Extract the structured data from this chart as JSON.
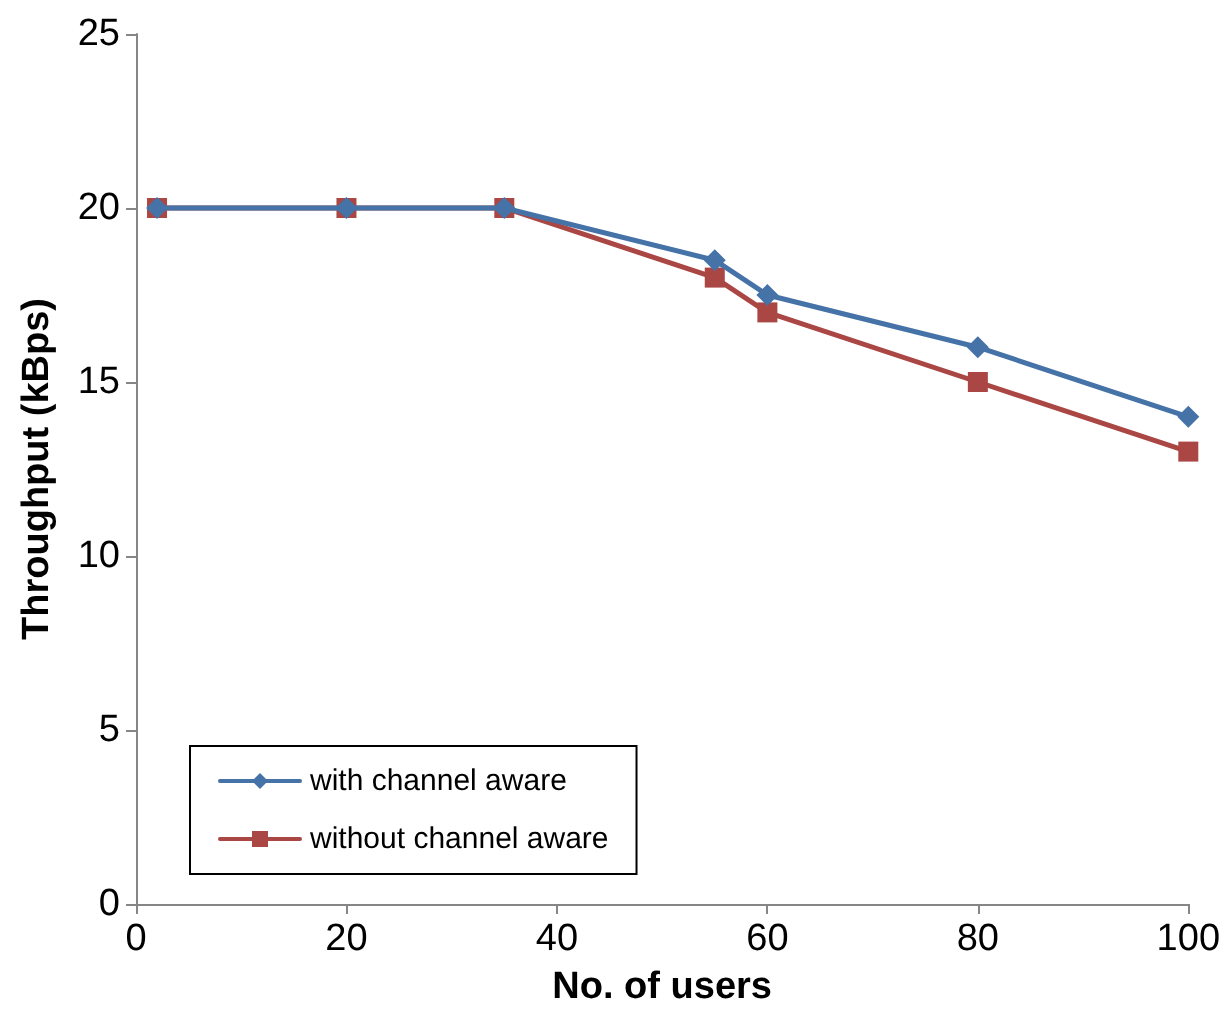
{
  "chart_data": {
    "type": "line",
    "xlabel": "No. of users",
    "ylabel": "Throughput (kBps)",
    "xlim": [
      0,
      100
    ],
    "xticks": [
      0,
      20,
      40,
      60,
      80,
      100
    ],
    "ylim": [
      0,
      25
    ],
    "yticks": [
      0,
      5,
      10,
      15,
      20,
      25
    ],
    "grid": false,
    "legend": "bottom left",
    "series": [
      {
        "name": "with channel aware",
        "color": "#4572a7",
        "marker": "diamond",
        "x": [
          2,
          20,
          35,
          55,
          60,
          80,
          100
        ],
        "values": [
          20,
          20,
          20,
          18.5,
          17.5,
          16,
          14
        ]
      },
      {
        "name": "without channel aware",
        "color": "#aa4643",
        "marker": "square",
        "x": [
          2,
          20,
          35,
          55,
          60,
          80,
          100
        ],
        "values": [
          20,
          20,
          20,
          18,
          17,
          15,
          13
        ]
      }
    ]
  }
}
